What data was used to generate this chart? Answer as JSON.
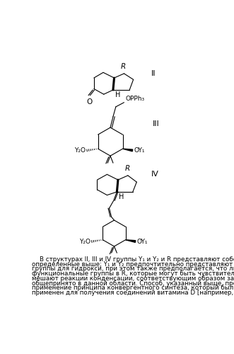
{
  "background_color": "#ffffff",
  "text_color": "#000000",
  "figure_width": 3.31,
  "figure_height": 5.0,
  "dpi": 100,
  "paragraph_lines": [
    "    В структурах II, III и IV группы Y₁ и Y₂ и R представляют собой группы,",
    "определенные выше; Y₁ и Y₂ предпочтительно представляют собой защитные",
    "группы для гидрокси, при этом также предполагается, что любые",
    "функциональные группы в R, которые могут быть чувствительными или которые",
    "мешают реакции конденсации, соответствующим образом защищены, как",
    "общепринято в данной области. Способ, указанный выше, представляет собой",
    "применение принципа конвергентного синтеза, который был эффективно",
    "применен для получения соединений витамина D [например, в Lythgoe et al., J."
  ],
  "font_size_text": 6.3,
  "struct_label_font_size": 8.0
}
